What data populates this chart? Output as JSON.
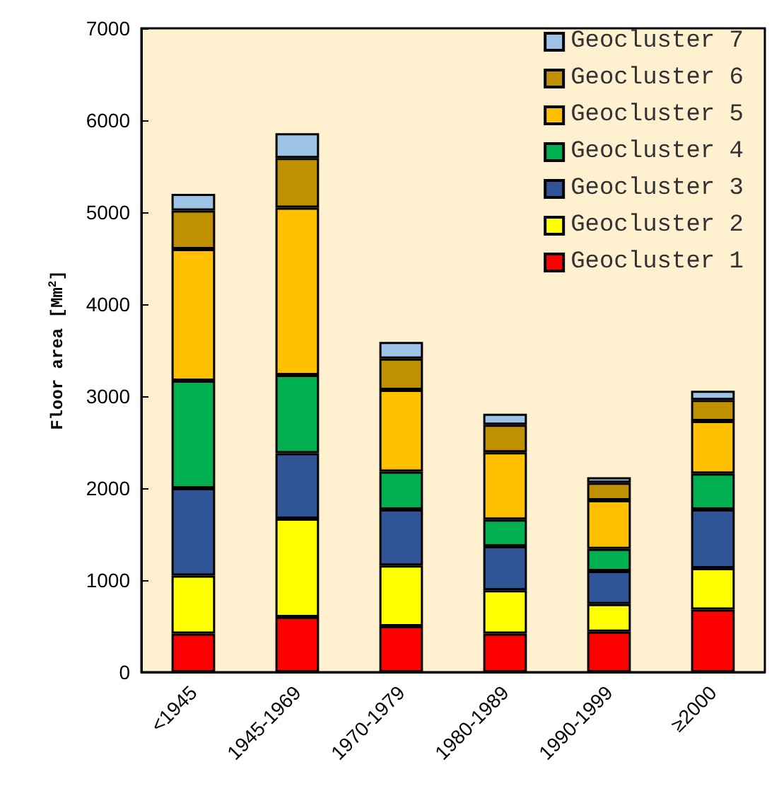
{
  "chart_data": {
    "type": "bar",
    "stacked": true,
    "ylabel": "Floor area [Mm$^{2}$]",
    "categories": [
      "<1945",
      "1945-1969",
      "1970-1979",
      "1980-1989",
      "1990-1999",
      "≥2000"
    ],
    "series": [
      {
        "name": "Geocluster 1",
        "color": "#ff0000",
        "values": [
          420,
          600,
          500,
          420,
          440,
          680
        ]
      },
      {
        "name": "Geocluster 2",
        "color": "#ffff00",
        "values": [
          630,
          1070,
          660,
          470,
          300,
          450
        ]
      },
      {
        "name": "Geocluster 3",
        "color": "#2f5597",
        "values": [
          950,
          710,
          610,
          480,
          360,
          640
        ]
      },
      {
        "name": "Geocluster 4",
        "color": "#00b050",
        "values": [
          1170,
          850,
          410,
          290,
          240,
          390
        ]
      },
      {
        "name": "Geocluster 5",
        "color": "#ffc000",
        "values": [
          1430,
          1820,
          890,
          730,
          530,
          570
        ]
      },
      {
        "name": "Geocluster 6",
        "color": "#bf9000",
        "values": [
          420,
          540,
          340,
          300,
          190,
          230
        ]
      },
      {
        "name": "Geocluster 7",
        "color": "#9dc3e6",
        "values": [
          180,
          270,
          180,
          120,
          60,
          100
        ]
      }
    ],
    "ylim": [
      0,
      7000
    ],
    "yticks": [
      0,
      1000,
      2000,
      3000,
      4000,
      5000,
      6000,
      7000
    ],
    "grid": false,
    "legend": "top right"
  }
}
